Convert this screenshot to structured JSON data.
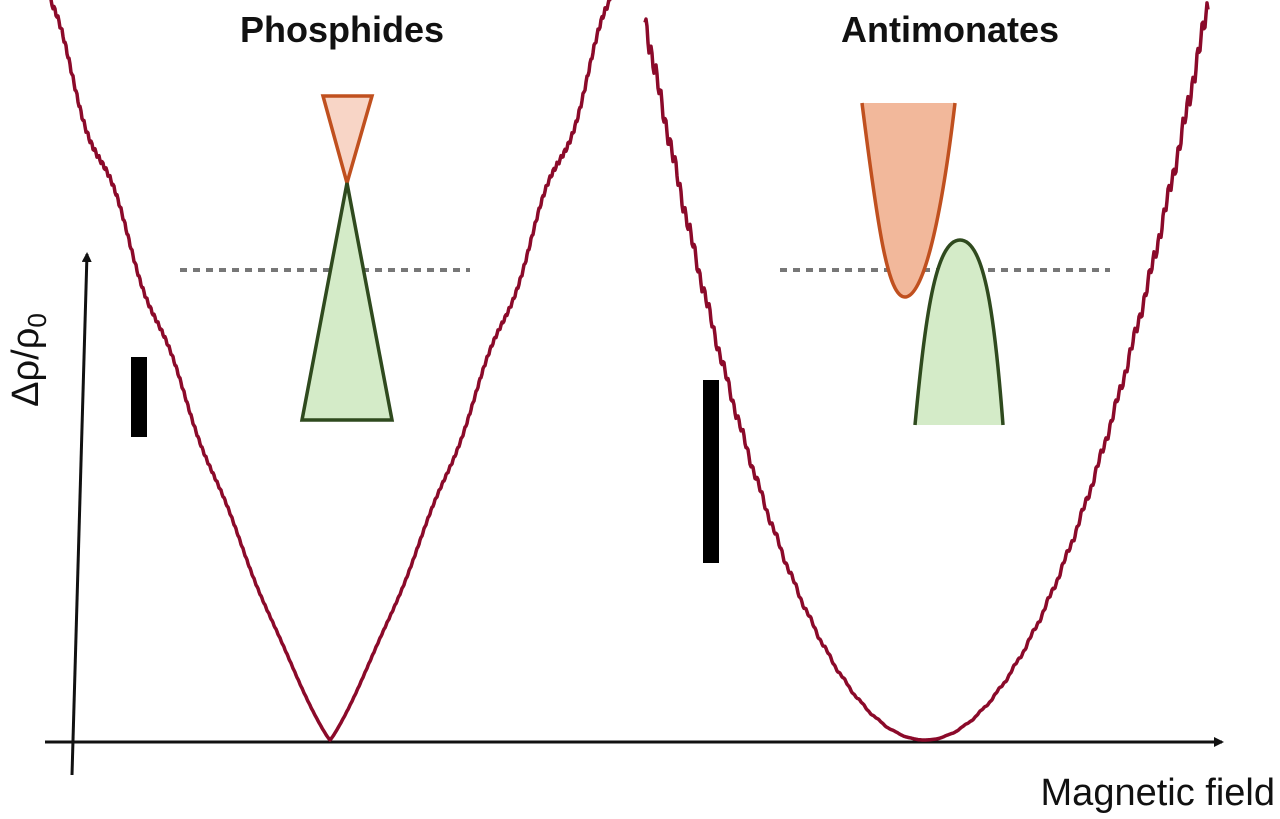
{
  "panels": [
    {
      "title": "Phosphides"
    },
    {
      "title": "Antimonates"
    }
  ],
  "y_axis": {
    "label": "Δρ/ρ",
    "subscript": "0"
  },
  "x_axis": {
    "label": "Magnetic field"
  }
}
